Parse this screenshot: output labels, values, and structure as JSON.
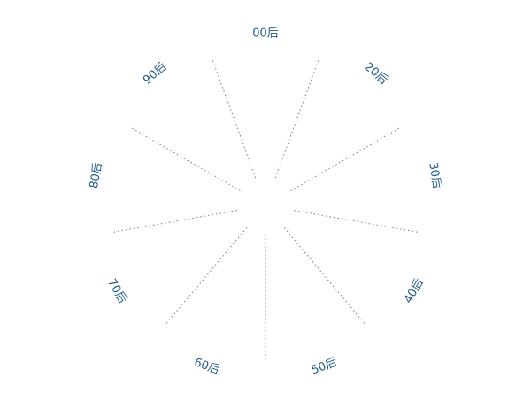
{
  "chart_data": {
    "type": "radar",
    "categories": [
      "00后",
      "20后",
      "30后",
      "40后",
      "50后",
      "60后",
      "70后",
      "80后",
      "90后"
    ],
    "series": [],
    "grid": false,
    "legend": "none",
    "colors": {
      "axis_line": "#8a7763",
      "label": "#1f5a8a",
      "background": "#ffffff"
    }
  }
}
